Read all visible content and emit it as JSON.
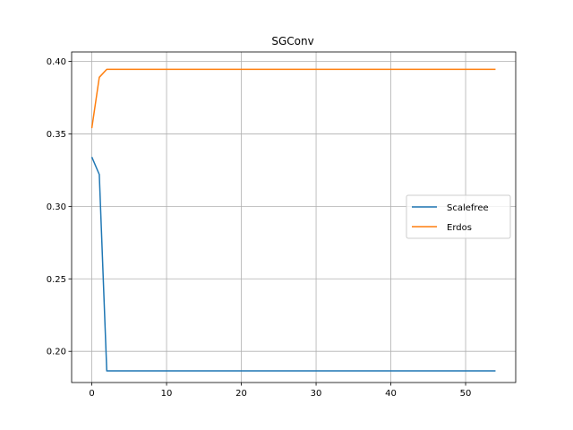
{
  "chart_data": {
    "type": "line",
    "title": "SGConv",
    "xlabel": "",
    "ylabel": "",
    "xlim": [
      -2.7,
      56.7
    ],
    "ylim": [
      0.1785,
      0.4065
    ],
    "xticks": [
      0,
      10,
      20,
      30,
      40,
      50
    ],
    "yticks": [
      0.2,
      0.25,
      0.3,
      0.35,
      0.4
    ],
    "xtick_labels": [
      "0",
      "10",
      "20",
      "30",
      "40",
      "50"
    ],
    "ytick_labels": [
      "0.20",
      "0.25",
      "0.30",
      "0.35",
      "0.40"
    ],
    "grid": true,
    "legend_position": "center-right",
    "series": [
      {
        "name": "Scalefree",
        "color": "#1f77b4",
        "x": [
          0,
          1,
          2,
          54
        ],
        "y": [
          0.334,
          0.322,
          0.1865,
          0.1865
        ]
      },
      {
        "name": "Erdos",
        "color": "#ff7f0e",
        "x": [
          0,
          1,
          2,
          54
        ],
        "y": [
          0.354,
          0.389,
          0.3945,
          0.3945
        ]
      }
    ]
  }
}
